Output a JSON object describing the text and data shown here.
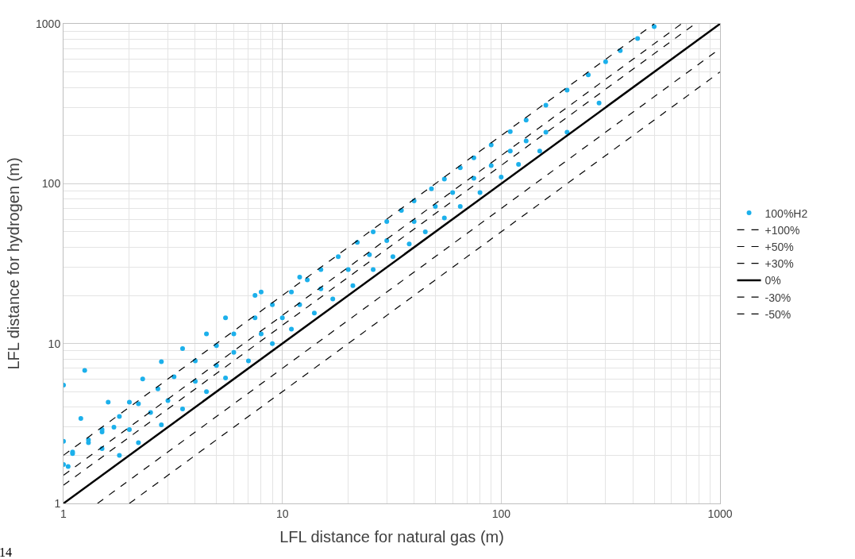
{
  "chart_data": {
    "type": "scatter",
    "xlabel": "LFL distance for natural gas (m)",
    "ylabel": "LFL distance for hydrogen (m)",
    "log": "xy",
    "xlim": [
      1,
      1000
    ],
    "ylim": [
      1,
      1000
    ],
    "xticks": [
      1,
      10,
      100,
      1000
    ],
    "yticks": [
      1,
      10,
      100,
      1000
    ],
    "grid": true,
    "legend": "right",
    "annotations": [
      "14"
    ],
    "series": [
      {
        "name": "100%H2",
        "color": "#1cb0eb",
        "marker": "circle",
        "x": [
          1,
          1.25,
          1,
          1,
          1.05,
          1.1,
          1.2,
          1.3,
          1.5,
          1.6,
          1.7,
          2,
          2.3,
          2.8,
          3.5,
          4.5,
          5.5,
          7.5,
          8,
          12,
          1.1,
          1.3,
          1.5,
          1.8,
          2.2,
          2.7,
          3.2,
          4,
          5,
          6,
          7.5,
          9,
          11,
          13,
          15,
          18,
          22,
          26,
          30,
          35,
          40,
          48,
          55,
          65,
          75,
          90,
          110,
          130,
          160,
          200,
          250,
          300,
          350,
          420,
          500,
          1.5,
          2,
          2.5,
          3,
          4,
          5,
          6,
          8,
          10,
          12,
          15,
          20,
          25,
          30,
          40,
          50,
          60,
          75,
          90,
          110,
          130,
          160,
          1.8,
          2.2,
          2.8,
          3.5,
          4.5,
          5.5,
          7,
          9,
          11,
          14,
          17,
          21,
          26,
          32,
          38,
          45,
          55,
          65,
          80,
          100,
          120,
          150,
          200,
          280
        ],
        "values": [
          5.5,
          6.8,
          2.45,
          1.75,
          1.7,
          2.05,
          3.4,
          2.4,
          2.8,
          4.3,
          3.0,
          4.3,
          6,
          7.7,
          9.3,
          11.5,
          14.5,
          20,
          21,
          26,
          2.1,
          2.5,
          2.9,
          3.5,
          4.2,
          5.2,
          6.2,
          7.8,
          9.7,
          11.5,
          14.5,
          17.5,
          21,
          25,
          29,
          35,
          43,
          50,
          58,
          68,
          78,
          93,
          107,
          126,
          145,
          175,
          212,
          250,
          310,
          385,
          480,
          580,
          680,
          810,
          960,
          2.2,
          2.9,
          3.7,
          4.4,
          5.8,
          7.3,
          8.8,
          11.5,
          14.5,
          17.5,
          22,
          29,
          36,
          44,
          58,
          72,
          88,
          108,
          130,
          160,
          185,
          210,
          2.0,
          2.4,
          3.1,
          3.9,
          5.0,
          6.1,
          7.8,
          10,
          12.3,
          15.5,
          19,
          23,
          29,
          35,
          42,
          50,
          61,
          72,
          88,
          110,
          132,
          160,
          210,
          320
        ]
      },
      {
        "name": "+100%",
        "type": "line",
        "color": "#000000",
        "line_style": "dashed",
        "marker": "none",
        "x": [
          1,
          500
        ],
        "values": [
          2,
          1000
        ]
      },
      {
        "name": "+50%",
        "type": "line",
        "color": "#000000",
        "line_style": "dashed",
        "marker": "none",
        "x": [
          1,
          666.7
        ],
        "values": [
          1.5,
          1000
        ]
      },
      {
        "name": "+30%",
        "type": "line",
        "color": "#000000",
        "line_style": "dashed",
        "marker": "none",
        "x": [
          1,
          769.2
        ],
        "values": [
          1.3,
          1000
        ]
      },
      {
        "name": "0%",
        "type": "line",
        "color": "#000000",
        "line_style": "solid",
        "marker": "none",
        "x": [
          1,
          1000
        ],
        "values": [
          1,
          1000
        ]
      },
      {
        "name": "-30%",
        "type": "line",
        "color": "#000000",
        "line_style": "dashed",
        "marker": "none",
        "x": [
          1.43,
          1000
        ],
        "values": [
          1,
          700
        ]
      },
      {
        "name": "-50%",
        "type": "line",
        "color": "#000000",
        "line_style": "dashed",
        "marker": "none",
        "x": [
          2,
          1000
        ],
        "values": [
          1,
          500
        ]
      }
    ]
  }
}
